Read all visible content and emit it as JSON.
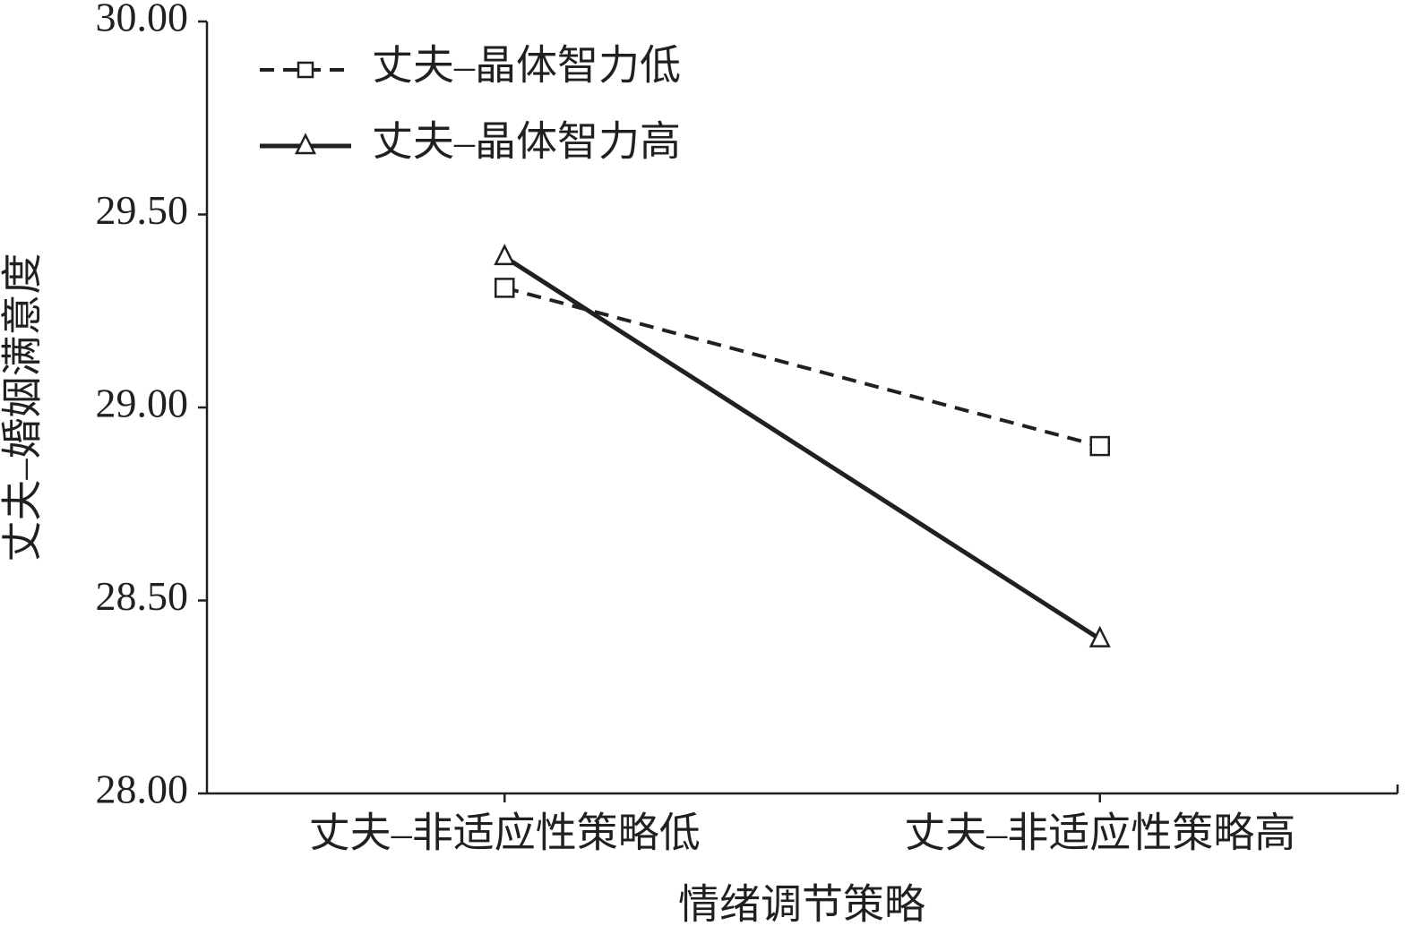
{
  "chart_data": {
    "type": "line",
    "y_label": "丈夫–婚姻满意度",
    "x_label": "情绪调节策略",
    "categories": [
      "丈夫–非适应性策略低",
      "丈夫–非适应性策略高"
    ],
    "series": [
      {
        "name": "丈夫–晶体智力低",
        "color": "#231f20",
        "dashed": true,
        "marker": "square",
        "values": [
          29.31,
          28.9
        ]
      },
      {
        "name": "丈夫–晶体智力高",
        "color": "#231f20",
        "dashed": false,
        "marker": "triangle",
        "values": [
          29.39,
          28.4
        ]
      }
    ],
    "ylim": [
      28,
      30
    ],
    "yticks": [
      {
        "value": 28,
        "label": "28.00"
      },
      {
        "value": 28.5,
        "label": "28.50"
      },
      {
        "value": 29,
        "label": "29.00"
      },
      {
        "value": 29.5,
        "label": "29.50"
      },
      {
        "value": 30,
        "label": "30.00"
      }
    ],
    "grid": false,
    "legend": "top-left"
  }
}
